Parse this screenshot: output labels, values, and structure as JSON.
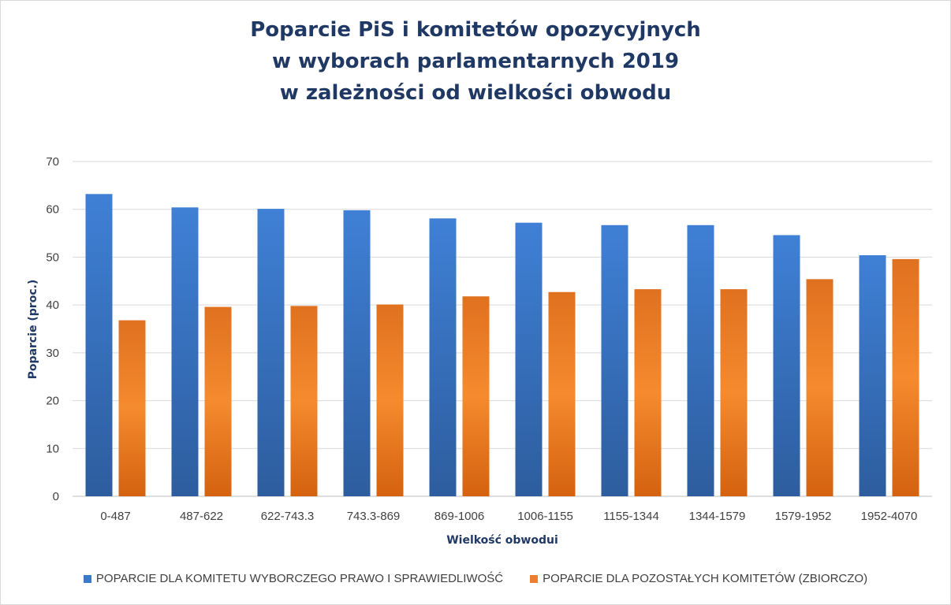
{
  "chart_data": {
    "type": "bar",
    "title_lines": [
      "Poparcie PiS i komitetów opozycyjnych",
      "w wyborach parlamentarnych 2019",
      "w zależności od wielkości obwodu"
    ],
    "xlabel": "Wielkość obwodui",
    "ylabel": "Poparcie (proc.)",
    "ylim": [
      0,
      70
    ],
    "yticks": [
      0,
      10,
      20,
      30,
      40,
      50,
      60,
      70
    ],
    "grid": true,
    "legend_position": "bottom",
    "categories": [
      "0-487",
      "487-622",
      "622-743.3",
      "743.3-869",
      "869-1006",
      "1006-1155",
      "1155-1344",
      "1344-1579",
      "1579-1952",
      "1952-4070"
    ],
    "series": [
      {
        "name": "POPARCIE DLA KOMITETU WYBORCZEGO PRAWO I SPRAWIEDLIWOŚĆ",
        "color": "#3a79cc",
        "values": [
          63.2,
          60.4,
          60.1,
          59.8,
          58.1,
          57.2,
          56.7,
          56.7,
          54.6,
          50.4
        ]
      },
      {
        "name": "POPARCIE DLA POZOSTAŁYCH KOMITETÓW (ZBIORCZO)",
        "color": "#ed7d31",
        "values": [
          36.8,
          39.6,
          39.8,
          40.1,
          41.8,
          42.7,
          43.3,
          43.3,
          45.4,
          49.6
        ]
      }
    ]
  }
}
